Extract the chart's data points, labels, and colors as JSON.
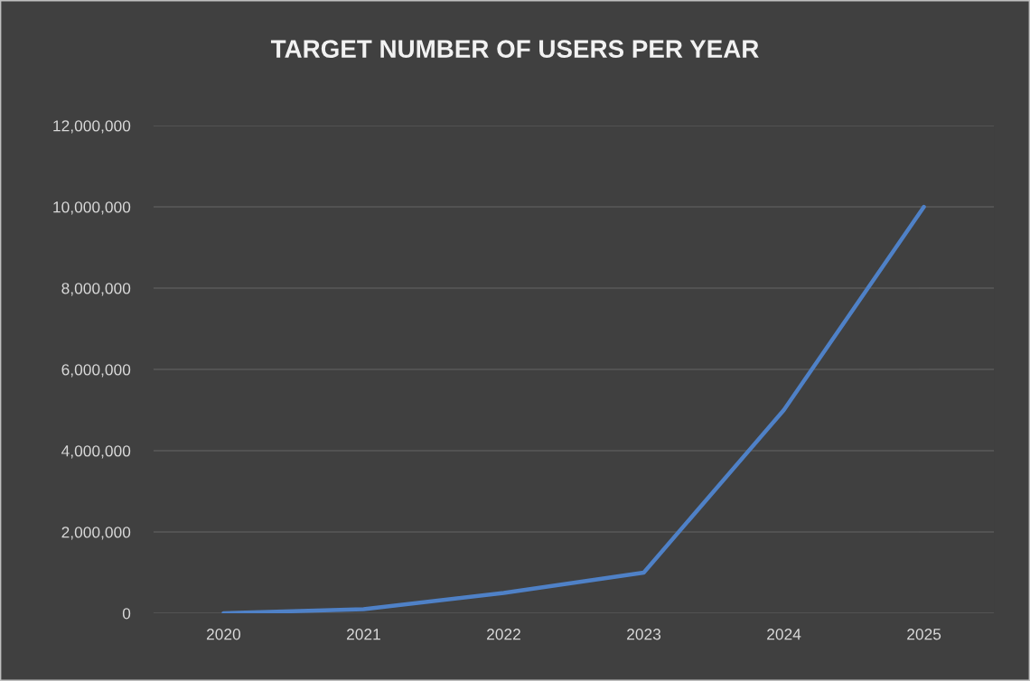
{
  "chart_data": {
    "type": "line",
    "title": "TARGET NUMBER OF USERS PER YEAR",
    "categories": [
      "2020",
      "2021",
      "2022",
      "2023",
      "2024",
      "2025"
    ],
    "series": [
      {
        "color": "#4f81c7",
        "values": [
          0,
          100000,
          500000,
          1000000,
          5000000,
          10000000
        ]
      }
    ],
    "ylim": [
      0,
      12000000
    ],
    "yticks": [
      {
        "value": 0,
        "label": "0"
      },
      {
        "value": 2000000,
        "label": "2,000,000"
      },
      {
        "value": 4000000,
        "label": "4,000,000"
      },
      {
        "value": 6000000,
        "label": "6,000,000"
      },
      {
        "value": 8000000,
        "label": "8,000,000"
      },
      {
        "value": 10000000,
        "label": "10,000,000"
      },
      {
        "value": 12000000,
        "label": "12,000,000"
      }
    ],
    "grid": "y",
    "marker": "none",
    "line_style": "solid"
  }
}
